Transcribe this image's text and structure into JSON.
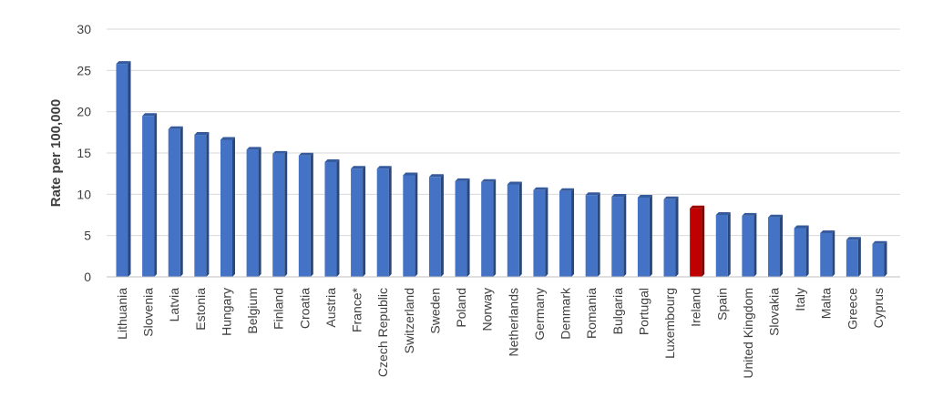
{
  "chart_data": {
    "type": "bar",
    "title": "",
    "xlabel": "",
    "ylabel": "Rate per 100,000",
    "ylim": [
      0,
      30
    ],
    "yticks": [
      0,
      5,
      10,
      15,
      20,
      25,
      30
    ],
    "grid": true,
    "categories": [
      "Lithuania",
      "Slovenia",
      "Latvia",
      "Estonia",
      "Hungary",
      "Belgium",
      "Finland",
      "Croatia",
      "Austria",
      "France*",
      "Czech Republic",
      "Switzerland",
      "Sweden",
      "Poland",
      "Norway",
      "Netherlands",
      "Germany",
      "Denmark",
      "Romania",
      "Bulgaria",
      "Portugal",
      "Luxembourg",
      "Ireland",
      "Spain",
      "United Kingdom",
      "Slovakia",
      "Italy",
      "Malta",
      "Greece",
      "Cyprus"
    ],
    "values": [
      25.8,
      19.5,
      17.9,
      17.2,
      16.6,
      15.4,
      14.9,
      14.7,
      13.9,
      13.1,
      13.1,
      12.3,
      12.1,
      11.6,
      11.5,
      11.2,
      10.5,
      10.4,
      9.9,
      9.7,
      9.6,
      9.4,
      8.3,
      7.5,
      7.4,
      7.2,
      5.9,
      5.3,
      4.5,
      4.0
    ],
    "colors": {
      "bar": "#4472C4",
      "highlight": "#C00000",
      "grid": "#D9D9D9"
    },
    "highlight_category": "Ireland"
  }
}
